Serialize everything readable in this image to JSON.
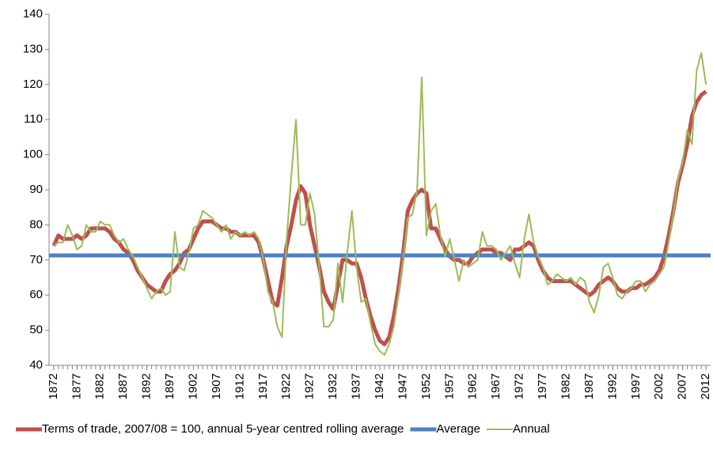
{
  "chart_data": {
    "type": "line",
    "x": [
      1872,
      1873,
      1874,
      1875,
      1876,
      1877,
      1878,
      1879,
      1880,
      1881,
      1882,
      1883,
      1884,
      1885,
      1886,
      1887,
      1888,
      1889,
      1890,
      1891,
      1892,
      1893,
      1894,
      1895,
      1896,
      1897,
      1898,
      1899,
      1900,
      1901,
      1902,
      1903,
      1904,
      1905,
      1906,
      1907,
      1908,
      1909,
      1910,
      1911,
      1912,
      1913,
      1914,
      1915,
      1916,
      1917,
      1918,
      1919,
      1920,
      1921,
      1922,
      1923,
      1924,
      1925,
      1926,
      1927,
      1928,
      1929,
      1930,
      1931,
      1932,
      1933,
      1934,
      1935,
      1936,
      1937,
      1938,
      1939,
      1940,
      1941,
      1942,
      1943,
      1944,
      1945,
      1946,
      1947,
      1948,
      1949,
      1950,
      1951,
      1952,
      1953,
      1954,
      1955,
      1956,
      1957,
      1958,
      1959,
      1960,
      1961,
      1962,
      1963,
      1964,
      1965,
      1966,
      1967,
      1968,
      1969,
      1970,
      1971,
      1972,
      1973,
      1974,
      1975,
      1976,
      1977,
      1978,
      1979,
      1980,
      1981,
      1982,
      1983,
      1984,
      1985,
      1986,
      1987,
      1988,
      1989,
      1990,
      1991,
      1992,
      1993,
      1994,
      1995,
      1996,
      1997,
      1998,
      1999,
      2000,
      2001,
      2002,
      2003,
      2004,
      2005,
      2006,
      2007,
      2008,
      2009,
      2010,
      2011,
      2012
    ],
    "xlim": [
      1871,
      2013
    ],
    "xticks": [
      1872,
      1877,
      1882,
      1887,
      1892,
      1897,
      1902,
      1907,
      1912,
      1917,
      1922,
      1927,
      1932,
      1937,
      1942,
      1947,
      1952,
      1957,
      1962,
      1967,
      1972,
      1977,
      1982,
      1987,
      1992,
      1997,
      2002,
      2007,
      2012
    ],
    "ylim": [
      40,
      140
    ],
    "yticks": [
      40,
      50,
      60,
      70,
      80,
      90,
      100,
      110,
      120,
      130,
      140
    ],
    "series": [
      {
        "name": "Terms of trade, 2007/08 = 100, annual 5-year centred rolling average",
        "color": "#c0504d",
        "width": 5,
        "values": [
          74,
          77,
          76,
          76,
          76,
          77,
          76,
          77,
          79,
          79,
          79,
          79,
          78,
          76,
          75,
          73,
          72,
          70,
          67,
          65,
          63,
          62,
          61,
          61,
          64,
          66,
          67,
          69,
          72,
          73,
          76,
          79,
          81,
          81,
          81,
          80,
          79,
          79,
          78,
          78,
          77,
          77,
          77,
          77,
          75,
          70,
          64,
          58,
          57,
          65,
          74,
          80,
          87,
          91,
          89,
          80,
          74,
          68,
          61,
          58,
          56,
          63,
          70,
          70,
          69,
          69,
          65,
          59,
          54,
          50,
          47,
          46,
          48,
          54,
          62,
          72,
          84,
          87,
          89,
          90,
          89,
          79,
          79,
          76,
          73,
          71,
          70,
          70,
          69,
          69,
          71,
          72,
          73,
          73,
          73,
          72,
          72,
          71,
          70,
          73,
          73,
          74,
          75,
          74,
          70,
          67,
          65,
          64,
          64,
          64,
          64,
          64,
          63,
          62,
          61,
          60,
          61,
          63,
          64,
          65,
          64,
          62,
          61,
          61,
          62,
          62,
          63,
          63,
          64,
          65,
          67,
          71,
          77,
          84,
          92,
          97,
          103,
          111,
          115,
          117,
          118
        ]
      },
      {
        "name": "Average",
        "color": "#4f81bd",
        "width": 5,
        "x": [
          1871,
          2013
        ],
        "values": [
          71.3,
          71.3
        ]
      },
      {
        "name": "Annual",
        "color": "#9bbb59",
        "width": 2,
        "values": [
          74,
          75,
          75,
          80,
          77,
          73,
          74,
          80,
          78,
          78,
          81,
          80,
          80,
          77,
          75,
          76,
          73,
          71,
          68,
          65,
          62,
          59,
          61,
          62,
          60,
          61,
          78,
          68,
          67,
          72,
          79,
          80,
          84,
          83,
          82,
          80,
          78,
          80,
          76,
          78,
          77,
          78,
          77,
          78,
          76,
          70,
          61,
          58,
          51,
          48,
          76,
          94,
          110,
          80,
          80,
          89,
          83,
          68,
          51,
          51,
          53,
          69,
          58,
          72,
          84,
          68,
          58,
          59,
          52,
          46,
          44,
          43,
          46,
          51,
          60,
          70,
          82,
          83,
          90,
          122,
          77,
          84,
          86,
          77,
          71,
          76,
          70,
          64,
          70,
          68,
          69,
          70,
          78,
          74,
          74,
          73,
          70,
          72,
          74,
          69,
          65,
          76,
          83,
          75,
          71,
          68,
          63,
          64,
          66,
          65,
          64,
          65,
          63,
          65,
          64,
          58,
          55,
          60,
          68,
          69,
          65,
          60,
          59,
          61,
          62,
          64,
          64,
          61,
          63,
          64,
          66,
          68,
          75,
          83,
          93,
          98,
          107,
          103,
          124,
          129,
          120
        ]
      }
    ]
  }
}
